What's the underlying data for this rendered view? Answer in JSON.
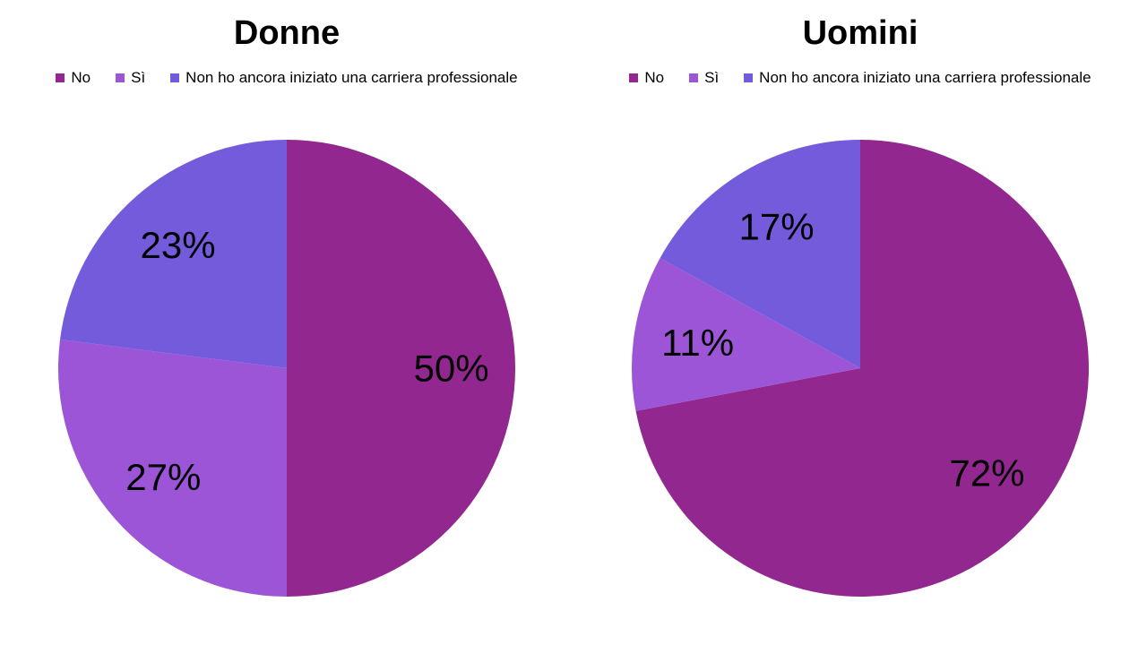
{
  "chart_data": [
    {
      "type": "pie",
      "title": "Donne",
      "categories": [
        "No",
        "Sì",
        "Non ho ancora iniziato una carriera professionale"
      ],
      "values": [
        50,
        27,
        23
      ],
      "value_labels": [
        "50%",
        "27%",
        "23%"
      ],
      "colors": [
        "#92278f",
        "#9b55d6",
        "#735bdc"
      ],
      "legend_position": "top",
      "start_angle_deg": 0,
      "direction": "clockwise"
    },
    {
      "type": "pie",
      "title": "Uomini",
      "categories": [
        "No",
        "Sì",
        "Non ho ancora iniziato una carriera professionale"
      ],
      "values": [
        72,
        11,
        17
      ],
      "value_labels": [
        "72%",
        "11%",
        "17%"
      ],
      "colors": [
        "#92278f",
        "#9b55d6",
        "#735bdc"
      ],
      "legend_position": "top",
      "start_angle_deg": 0,
      "direction": "clockwise"
    }
  ]
}
